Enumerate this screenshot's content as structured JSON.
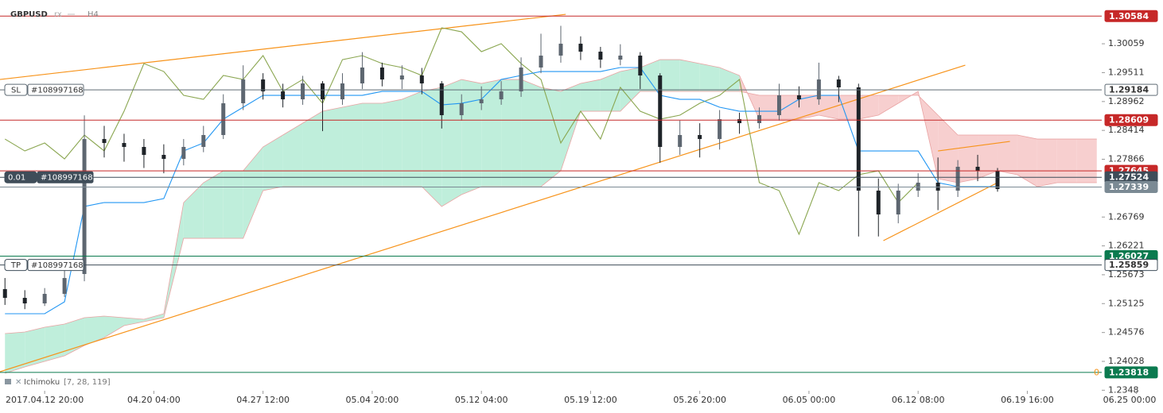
{
  "chart_data": {
    "type": "candlestick",
    "symbol": "GBPUSD",
    "pair_mode": "rx",
    "timeframe": "H4",
    "indicator": {
      "name": "Ichimoku",
      "params": "[7, 28, 119]"
    },
    "xlim": [
      -18,
      426
    ],
    "ylim": [
      1.2347,
      1.3089
    ],
    "xticks": [
      {
        "value": 0,
        "label": "2017.04.12  20:00"
      },
      {
        "value": 44,
        "label": "04.20  04:00"
      },
      {
        "value": 88,
        "label": "04.27  12:00"
      },
      {
        "value": 132,
        "label": "05.04  20:00"
      },
      {
        "value": 176,
        "label": "05.12  04:00"
      },
      {
        "value": 220,
        "label": "05.19  12:00"
      },
      {
        "value": 264,
        "label": "05.26  20:00"
      },
      {
        "value": 308,
        "label": "06.05  00:00"
      },
      {
        "value": 352,
        "label": "06.12  08:00"
      },
      {
        "value": 396,
        "label": "06.19  16:00"
      },
      {
        "value": 440,
        "label": "06.25  00:00"
      }
    ],
    "yticks": [
      1.30059,
      1.29511,
      1.28962,
      1.28414,
      1.27866,
      1.26769,
      1.26221,
      1.25673,
      1.25125,
      1.24576,
      1.24028,
      1.2348
    ],
    "candles": {
      "up_color": "#5d6670",
      "down_color": "#1e2328",
      "x": [
        -16,
        -8,
        0,
        8,
        16,
        24,
        32,
        40,
        48,
        56,
        64,
        72,
        80,
        88,
        96,
        104,
        112,
        120,
        128,
        136,
        144,
        152,
        160,
        168,
        176,
        184,
        192,
        200,
        208,
        216,
        224,
        232,
        240,
        248,
        256,
        264,
        272,
        280,
        288,
        296,
        304,
        312,
        320,
        328,
        336,
        344,
        352,
        360,
        368,
        376,
        384
      ],
      "open": [
        1.254,
        1.25234,
        1.25129,
        1.2531,
        1.25687,
        1.2825,
        1.28175,
        1.281,
        1.27949,
        1.27873,
        1.281,
        1.28326,
        1.28929,
        1.29381,
        1.29155,
        1.29004,
        1.29306,
        1.29004,
        1.29306,
        1.29608,
        1.29381,
        1.29457,
        1.29306,
        1.28703,
        1.28929,
        1.29004,
        1.29155,
        1.29608,
        1.29834,
        1.3006,
        1.29909,
        1.29758,
        1.29834,
        1.29457,
        1.281,
        1.28326,
        1.2825,
        1.28627,
        1.28552,
        1.28703,
        1.2908,
        1.29004,
        1.29381,
        1.29231,
        1.2727,
        1.26818,
        1.2727,
        1.27421,
        1.2727,
        1.27723,
        1.27647
      ],
      "high": [
        1.25611,
        1.2538,
        1.2542,
        1.2576,
        1.287,
        1.285,
        1.2835,
        1.2825,
        1.2815,
        1.2825,
        1.285,
        1.291,
        1.2965,
        1.295,
        1.293,
        1.2945,
        1.2935,
        1.295,
        1.299,
        1.297,
        1.2965,
        1.296,
        1.2935,
        1.291,
        1.2925,
        1.2935,
        1.298,
        1.3025,
        1.304,
        1.302,
        1.3,
        1.3005,
        1.299,
        1.295,
        1.286,
        1.2855,
        1.288,
        1.2875,
        1.2885,
        1.293,
        1.2925,
        1.297,
        1.2945,
        1.293,
        1.275,
        1.274,
        1.276,
        1.279,
        1.2785,
        1.2795,
        1.277
      ],
      "low": [
        1.251,
        1.2502,
        1.2508,
        1.2525,
        1.2555,
        1.279,
        1.2782,
        1.277,
        1.276,
        1.2775,
        1.28,
        1.2825,
        1.288,
        1.29,
        1.2885,
        1.289,
        1.284,
        1.289,
        1.292,
        1.2925,
        1.292,
        1.291,
        1.2845,
        1.286,
        1.288,
        1.289,
        1.2905,
        1.295,
        1.297,
        1.2975,
        1.296,
        1.2965,
        1.292,
        1.278,
        1.2795,
        1.279,
        1.2805,
        1.2835,
        1.2845,
        1.286,
        1.2885,
        1.289,
        1.2895,
        1.264,
        1.264,
        1.2665,
        1.2715,
        1.269,
        1.2715,
        1.2745,
        1.2725
      ],
      "close": [
        1.25234,
        1.25129,
        1.2531,
        1.25611,
        1.2825,
        1.28175,
        1.281,
        1.27949,
        1.27873,
        1.281,
        1.28326,
        1.28929,
        1.29381,
        1.29155,
        1.29004,
        1.29306,
        1.29004,
        1.29306,
        1.29608,
        1.29381,
        1.29457,
        1.29306,
        1.28703,
        1.28929,
        1.29004,
        1.29155,
        1.29608,
        1.29834,
        1.3006,
        1.29909,
        1.29758,
        1.29834,
        1.29457,
        1.281,
        1.28326,
        1.2825,
        1.28627,
        1.28552,
        1.28703,
        1.2908,
        1.29004,
        1.29381,
        1.29231,
        1.2727,
        1.26818,
        1.2727,
        1.27421,
        1.2727,
        1.27723,
        1.27647,
        1.273
      ]
    },
    "cloud": {
      "up_color": "#bfeedb",
      "down_color": "#f7cfcf",
      "edge_color": "#e9a3a3",
      "x": [
        -16,
        -8,
        0,
        8,
        16,
        24,
        32,
        40,
        48,
        56,
        64,
        72,
        80,
        88,
        96,
        104,
        112,
        120,
        128,
        136,
        144,
        152,
        160,
        168,
        176,
        184,
        192,
        200,
        208,
        216,
        224,
        232,
        240,
        248,
        256,
        264,
        272,
        280,
        288,
        296,
        304,
        312,
        320,
        328,
        336,
        344,
        352,
        360,
        368,
        376,
        384,
        392,
        400,
        408,
        416,
        424
      ],
      "span_a": [
        1.24556,
        1.24586,
        1.24676,
        1.24737,
        1.24857,
        1.24888,
        1.24857,
        1.24827,
        1.24933,
        1.27044,
        1.27421,
        1.27647,
        1.27647,
        1.281,
        1.28326,
        1.28552,
        1.28778,
        1.28854,
        1.28929,
        1.28929,
        1.29004,
        1.29155,
        1.29231,
        1.29381,
        1.29306,
        1.29381,
        1.29381,
        1.29231,
        1.29155,
        1.29306,
        1.29381,
        1.29532,
        1.29608,
        1.29758,
        1.29758,
        1.29683,
        1.29608,
        1.29457,
        1.28627,
        1.28627,
        1.28627,
        1.28703,
        1.28627,
        1.28627,
        1.28703,
        1.28929,
        1.29155,
        1.27496,
        1.27421,
        1.27496,
        1.27647,
        1.27572,
        1.27346,
        1.27421,
        1.27421,
        1.27421
      ],
      "span_b": [
        1.23802,
        1.23922,
        1.24028,
        1.24134,
        1.2433,
        1.2448,
        1.24707,
        1.24782,
        1.24857,
        1.26365,
        1.26365,
        1.26365,
        1.26365,
        1.2727,
        1.27346,
        1.27346,
        1.27346,
        1.27346,
        1.27346,
        1.27346,
        1.27346,
        1.27346,
        1.26969,
        1.27195,
        1.27346,
        1.27346,
        1.27346,
        1.27346,
        1.27647,
        1.28778,
        1.28778,
        1.28778,
        1.29155,
        1.29155,
        1.29155,
        1.29155,
        1.29155,
        1.29155,
        1.2908,
        1.2908,
        1.2908,
        1.2908,
        1.2908,
        1.2908,
        1.2908,
        1.2908,
        1.2908,
        1.28703,
        1.28326,
        1.28326,
        1.28326,
        1.28326,
        1.2825,
        1.2825,
        1.2825,
        1.2825
      ]
    },
    "lines": [
      {
        "color": "#8aa650",
        "x": [
          -16,
          -8,
          0,
          8,
          16,
          24,
          32,
          40,
          48,
          56,
          64,
          72,
          80,
          88,
          96,
          104,
          112,
          120,
          128,
          136,
          144,
          152,
          160,
          168,
          176,
          184,
          192,
          200,
          208,
          216,
          224,
          232,
          240,
          248,
          256,
          264,
          272,
          280,
          288,
          296,
          304,
          312,
          320,
          328,
          336,
          344,
          352
        ],
        "values": [
          1.2825,
          1.28024,
          1.28175,
          1.27873,
          1.28326,
          1.28024,
          1.28778,
          1.29683,
          1.29532,
          1.2908,
          1.29004,
          1.29457,
          1.29381,
          1.29834,
          1.29155,
          1.29381,
          1.28929,
          1.29758,
          1.29834,
          1.29683,
          1.29608,
          1.29457,
          1.30362,
          1.30286,
          1.29909,
          1.3006,
          1.29683,
          1.29381,
          1.28175,
          1.28778,
          1.2825,
          1.29231,
          1.28778,
          1.28627,
          1.28703,
          1.28929,
          1.2908,
          1.29381,
          1.27421,
          1.2727,
          1.26441,
          1.27421,
          1.2727,
          1.27572,
          1.27647,
          1.27044,
          1.27421
        ]
      },
      {
        "color": "#2196f3",
        "x": [
          -16,
          -8,
          0,
          8,
          16,
          24,
          32,
          40,
          48,
          56,
          64,
          72,
          80,
          88,
          96,
          104,
          112,
          120,
          128,
          136,
          144,
          152,
          160,
          168,
          176,
          184,
          192,
          200,
          208,
          216,
          224,
          232,
          240,
          248,
          256,
          264,
          272,
          280,
          288,
          296,
          304,
          312,
          320,
          328,
          336,
          344,
          352,
          360,
          368,
          376,
          384
        ],
        "values": [
          1.24933,
          1.24933,
          1.24933,
          1.25159,
          1.26969,
          1.27044,
          1.27044,
          1.27044,
          1.27119,
          1.28024,
          1.28175,
          1.28627,
          1.28854,
          1.2908,
          1.2908,
          1.2908,
          1.2908,
          1.2908,
          1.2908,
          1.29155,
          1.29155,
          1.29155,
          1.28899,
          1.28929,
          1.29004,
          1.29381,
          1.29457,
          1.29532,
          1.29532,
          1.29532,
          1.29532,
          1.29608,
          1.29608,
          1.2908,
          1.29004,
          1.29004,
          1.28854,
          1.28778,
          1.28778,
          1.28778,
          1.29004,
          1.2908,
          1.2908,
          1.28024,
          1.28024,
          1.28024,
          1.28024,
          1.27421,
          1.27346,
          1.27346,
          1.27346
        ]
      }
    ],
    "trendlines": [
      {
        "color": "#f7931a",
        "x": [
          -18,
          210
        ],
        "values": [
          1.29381,
          1.30618
        ]
      },
      {
        "color": "#f7931a",
        "x": [
          -18,
          371
        ],
        "values": [
          1.23832,
          1.29653
        ]
      },
      {
        "color": "#f7931a",
        "x": [
          338,
          384
        ],
        "values": [
          1.2632,
          1.27421
        ]
      },
      {
        "color": "#f7931a",
        "x": [
          360,
          389
        ],
        "values": [
          1.28024,
          1.28205
        ]
      }
    ],
    "levels": [
      {
        "value": 1.30584,
        "color": "#c62828",
        "box": "filled"
      },
      {
        "value": 1.29184,
        "color": "#5f6b75",
        "box": "outline",
        "tag": "SL",
        "order": "#108997168"
      },
      {
        "value": 1.28609,
        "color": "#c62828",
        "box": "filled"
      },
      {
        "value": 1.27645,
        "color": "#c62828",
        "box": "filled"
      },
      {
        "value": 1.27524,
        "color": "#3f4d59",
        "box": "filled",
        "tag": "0.01",
        "order": "#108997168"
      },
      {
        "value": 1.27339,
        "color": "#7b8a94",
        "box": "filled"
      },
      {
        "value": 1.26027,
        "color": "#0b7a4f",
        "box": "filled"
      },
      {
        "value": 1.25859,
        "color": "#3f4d59",
        "box": "outline",
        "tag": "TP",
        "order": "#108997168"
      },
      {
        "value": 1.23818,
        "color": "#0b7a4f",
        "box": "filled",
        "marker": "0"
      }
    ]
  }
}
